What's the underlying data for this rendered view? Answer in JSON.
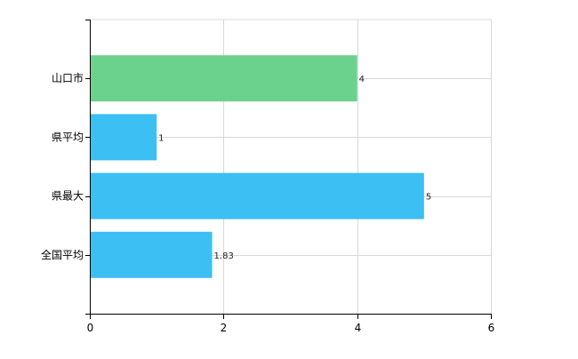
{
  "chart_data": {
    "type": "bar",
    "orientation": "horizontal",
    "categories": [
      "山口市",
      "県平均",
      "県最大",
      "全国平均"
    ],
    "values": [
      4,
      1,
      5,
      1.83
    ],
    "data_labels": [
      "4",
      "1",
      "5",
      "1.83"
    ],
    "bar_colors": [
      "#6ad28c",
      "#3cbff2",
      "#3cbff2",
      "#3cbff2"
    ],
    "xlim": [
      0,
      6
    ],
    "x_ticks": [
      0,
      2,
      4,
      6
    ],
    "x_tick_labels": [
      "0",
      "2",
      "4",
      "6"
    ],
    "grid": true,
    "title": "",
    "xlabel": "",
    "ylabel": ""
  }
}
